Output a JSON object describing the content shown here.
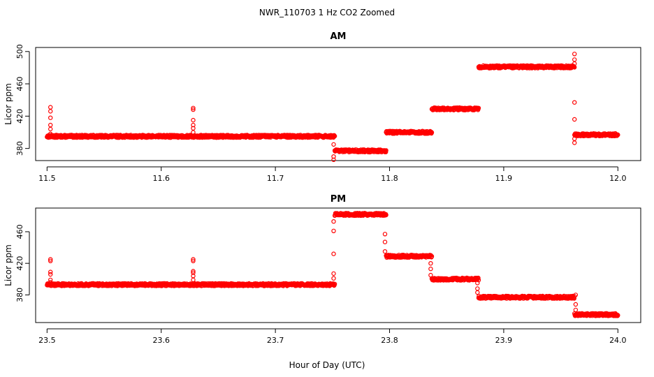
{
  "figure_title": "NWR_110703  1 Hz CO2 Zoomed",
  "xlabel": "Hour of Day (UTC)",
  "chart_data": [
    {
      "type": "scatter",
      "title": "AM",
      "ylabel": "Licor ppm",
      "xlim": [
        11.49,
        12.02
      ],
      "ylim": [
        365,
        505
      ],
      "xticks": [
        11.5,
        11.6,
        11.7,
        11.8,
        11.9,
        12.0
      ],
      "xtick_labels": [
        "11.5",
        "11.6",
        "11.7",
        "11.8",
        "11.9",
        "12.0"
      ],
      "yticks": [
        380,
        420,
        460,
        500
      ],
      "ytick_labels": [
        "380",
        "420",
        "460",
        "500"
      ],
      "series": [
        {
          "name": "CO2",
          "color": "#ff0000",
          "segments": [
            {
              "x0": 11.5,
              "x1": 11.752,
              "y": 395
            },
            {
              "x0": 11.752,
              "x1": 11.797,
              "y": 377
            },
            {
              "x0": 11.797,
              "x1": 11.837,
              "y": 400
            },
            {
              "x0": 11.837,
              "x1": 11.878,
              "y": 429
            },
            {
              "x0": 11.878,
              "x1": 11.962,
              "y": 481
            },
            {
              "x0": 11.962,
              "x1": 12.0,
              "y": 397
            }
          ],
          "spikes": [
            {
              "x": 11.503,
              "y": [
                398,
                404,
                409,
                418,
                426,
                431
              ]
            },
            {
              "x": 11.628,
              "y": [
                400,
                405,
                409,
                415,
                428,
                430
              ]
            },
            {
              "x": 11.751,
              "y": [
                385,
                370,
                366
              ]
            },
            {
              "x": 11.962,
              "y": [
                485,
                490,
                497,
                437,
                416,
                392,
                387
              ]
            }
          ]
        }
      ]
    },
    {
      "type": "scatter",
      "title": "PM",
      "ylabel": "Licor ppm",
      "xlim": [
        23.49,
        24.02
      ],
      "ylim": [
        345,
        490
      ],
      "xticks": [
        23.5,
        23.6,
        23.7,
        23.8,
        23.9,
        24.0
      ],
      "xtick_labels": [
        "23.5",
        "23.6",
        "23.7",
        "23.8",
        "23.9",
        "24.0"
      ],
      "yticks": [
        380,
        420,
        460
      ],
      "ytick_labels": [
        "380",
        "420",
        "460"
      ],
      "series": [
        {
          "name": "CO2",
          "color": "#ff0000",
          "segments": [
            {
              "x0": 23.5,
              "x1": 23.752,
              "y": 393
            },
            {
              "x0": 23.752,
              "x1": 23.797,
              "y": 482
            },
            {
              "x0": 23.797,
              "x1": 23.837,
              "y": 429
            },
            {
              "x0": 23.837,
              "x1": 23.878,
              "y": 400
            },
            {
              "x0": 23.878,
              "x1": 23.962,
              "y": 377
            },
            {
              "x0": 23.962,
              "x1": 24.0,
              "y": 355
            }
          ],
          "spikes": [
            {
              "x": 23.503,
              "y": [
                396,
                399,
                406,
                409,
                423,
                425
              ]
            },
            {
              "x": 23.628,
              "y": [
                399,
                404,
                408,
                410,
                423,
                425
              ]
            },
            {
              "x": 23.751,
              "y": [
                401,
                407,
                432,
                461,
                473
              ]
            },
            {
              "x": 23.796,
              "y": [
                457,
                447,
                435
              ]
            },
            {
              "x": 23.836,
              "y": [
                420,
                413,
                405
              ]
            },
            {
              "x": 23.877,
              "y": [
                395,
                388,
                383
              ]
            },
            {
              "x": 23.963,
              "y": [
                380,
                368,
                361
              ]
            }
          ]
        }
      ]
    }
  ]
}
